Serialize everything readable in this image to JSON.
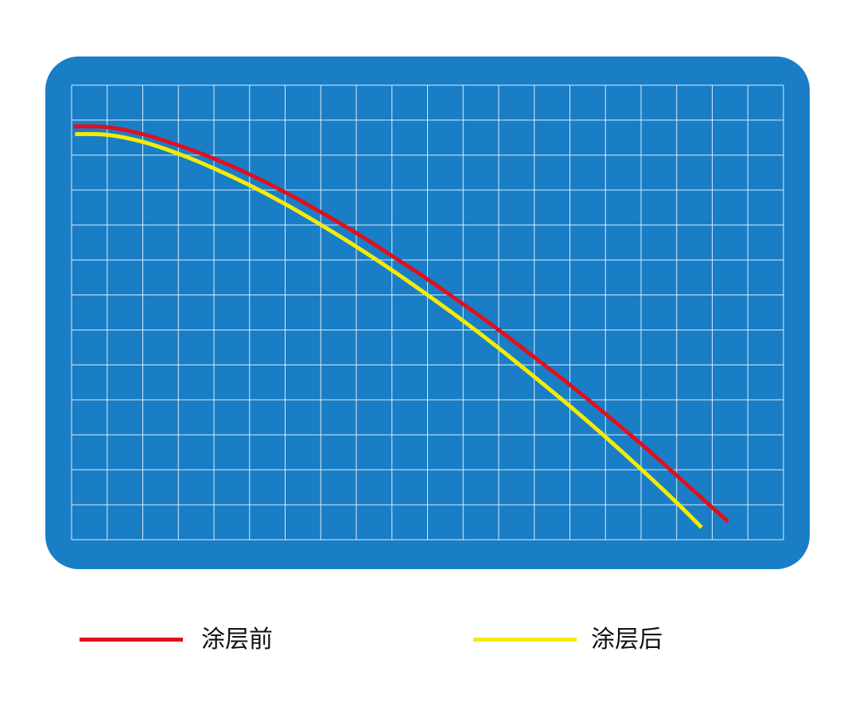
{
  "colors": {
    "background": "#ffffff",
    "panel": "#1a7ec6",
    "grid": "#ffffff",
    "before": "#e0101e",
    "after": "#f4ec00"
  },
  "chart_data": {
    "type": "line",
    "title": "",
    "xlabel": "",
    "ylabel": "",
    "grid": true,
    "grid_columns": 20,
    "grid_rows": 13,
    "xlim": [
      0,
      20
    ],
    "ylim": [
      0,
      13
    ],
    "legend_position": "bottom",
    "series": [
      {
        "name": "涂层前",
        "color": "#e0101e",
        "x": [
          0.05,
          1,
          2,
          3,
          4,
          5,
          6,
          7,
          8,
          9,
          10,
          11,
          12,
          13,
          14,
          15,
          16,
          17,
          18,
          18.45
        ],
        "y": [
          11.82,
          11.8,
          11.6,
          11.28,
          10.9,
          10.45,
          9.94,
          9.37,
          8.77,
          8.12,
          7.45,
          6.74,
          6.0,
          5.22,
          4.43,
          3.6,
          2.74,
          1.84,
          0.92,
          0.52
        ]
      },
      {
        "name": "涂层后",
        "color": "#f4ec00",
        "x": [
          0.1,
          1,
          2,
          3,
          4,
          5,
          6,
          7,
          8,
          9,
          10,
          11,
          12,
          13,
          14,
          15,
          16,
          17,
          17.7
        ],
        "y": [
          11.6,
          11.58,
          11.38,
          11.04,
          10.62,
          10.14,
          9.6,
          9.01,
          8.38,
          7.71,
          7.0,
          6.26,
          5.48,
          4.66,
          3.82,
          2.94,
          2.02,
          1.06,
          0.35
        ]
      }
    ]
  },
  "legend": {
    "items": [
      {
        "label": "涂层前",
        "color": "#e0101e"
      },
      {
        "label": "涂层后",
        "color": "#f4ec00"
      }
    ]
  }
}
